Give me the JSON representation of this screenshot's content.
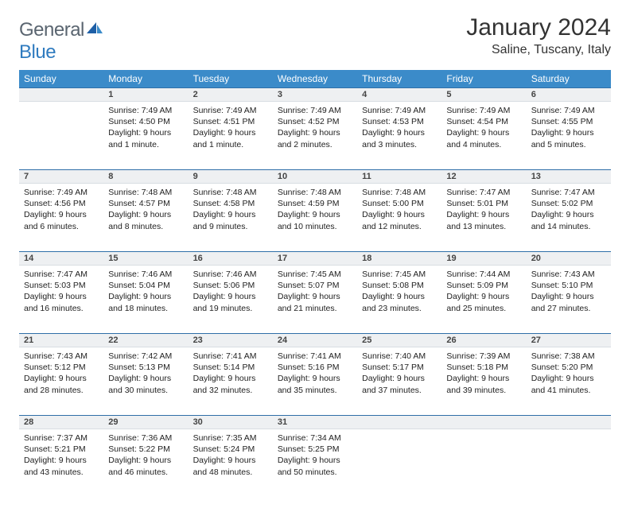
{
  "brand": {
    "name_gray": "General",
    "name_blue": "Blue"
  },
  "title": "January 2024",
  "location": "Saline, Tuscany, Italy",
  "colors": {
    "header_bg": "#3b8bc9",
    "header_text": "#ffffff",
    "daynum_bg": "#eef0f2",
    "daynum_border_top": "#2f6fa8",
    "logo_gray": "#5a6570",
    "logo_blue": "#2f7bbf",
    "text": "#222222",
    "page_bg": "#ffffff"
  },
  "layout": {
    "columns": 7,
    "rows": 5,
    "first_weekday_offset": 1
  },
  "weekdays": [
    "Sunday",
    "Monday",
    "Tuesday",
    "Wednesday",
    "Thursday",
    "Friday",
    "Saturday"
  ],
  "days": [
    {
      "n": 1,
      "sunrise": "7:49 AM",
      "sunset": "4:50 PM",
      "daylight": "9 hours and 1 minute."
    },
    {
      "n": 2,
      "sunrise": "7:49 AM",
      "sunset": "4:51 PM",
      "daylight": "9 hours and 1 minute."
    },
    {
      "n": 3,
      "sunrise": "7:49 AM",
      "sunset": "4:52 PM",
      "daylight": "9 hours and 2 minutes."
    },
    {
      "n": 4,
      "sunrise": "7:49 AM",
      "sunset": "4:53 PM",
      "daylight": "9 hours and 3 minutes."
    },
    {
      "n": 5,
      "sunrise": "7:49 AM",
      "sunset": "4:54 PM",
      "daylight": "9 hours and 4 minutes."
    },
    {
      "n": 6,
      "sunrise": "7:49 AM",
      "sunset": "4:55 PM",
      "daylight": "9 hours and 5 minutes."
    },
    {
      "n": 7,
      "sunrise": "7:49 AM",
      "sunset": "4:56 PM",
      "daylight": "9 hours and 6 minutes."
    },
    {
      "n": 8,
      "sunrise": "7:48 AM",
      "sunset": "4:57 PM",
      "daylight": "9 hours and 8 minutes."
    },
    {
      "n": 9,
      "sunrise": "7:48 AM",
      "sunset": "4:58 PM",
      "daylight": "9 hours and 9 minutes."
    },
    {
      "n": 10,
      "sunrise": "7:48 AM",
      "sunset": "4:59 PM",
      "daylight": "9 hours and 10 minutes."
    },
    {
      "n": 11,
      "sunrise": "7:48 AM",
      "sunset": "5:00 PM",
      "daylight": "9 hours and 12 minutes."
    },
    {
      "n": 12,
      "sunrise": "7:47 AM",
      "sunset": "5:01 PM",
      "daylight": "9 hours and 13 minutes."
    },
    {
      "n": 13,
      "sunrise": "7:47 AM",
      "sunset": "5:02 PM",
      "daylight": "9 hours and 14 minutes."
    },
    {
      "n": 14,
      "sunrise": "7:47 AM",
      "sunset": "5:03 PM",
      "daylight": "9 hours and 16 minutes."
    },
    {
      "n": 15,
      "sunrise": "7:46 AM",
      "sunset": "5:04 PM",
      "daylight": "9 hours and 18 minutes."
    },
    {
      "n": 16,
      "sunrise": "7:46 AM",
      "sunset": "5:06 PM",
      "daylight": "9 hours and 19 minutes."
    },
    {
      "n": 17,
      "sunrise": "7:45 AM",
      "sunset": "5:07 PM",
      "daylight": "9 hours and 21 minutes."
    },
    {
      "n": 18,
      "sunrise": "7:45 AM",
      "sunset": "5:08 PM",
      "daylight": "9 hours and 23 minutes."
    },
    {
      "n": 19,
      "sunrise": "7:44 AM",
      "sunset": "5:09 PM",
      "daylight": "9 hours and 25 minutes."
    },
    {
      "n": 20,
      "sunrise": "7:43 AM",
      "sunset": "5:10 PM",
      "daylight": "9 hours and 27 minutes."
    },
    {
      "n": 21,
      "sunrise": "7:43 AM",
      "sunset": "5:12 PM",
      "daylight": "9 hours and 28 minutes."
    },
    {
      "n": 22,
      "sunrise": "7:42 AM",
      "sunset": "5:13 PM",
      "daylight": "9 hours and 30 minutes."
    },
    {
      "n": 23,
      "sunrise": "7:41 AM",
      "sunset": "5:14 PM",
      "daylight": "9 hours and 32 minutes."
    },
    {
      "n": 24,
      "sunrise": "7:41 AM",
      "sunset": "5:16 PM",
      "daylight": "9 hours and 35 minutes."
    },
    {
      "n": 25,
      "sunrise": "7:40 AM",
      "sunset": "5:17 PM",
      "daylight": "9 hours and 37 minutes."
    },
    {
      "n": 26,
      "sunrise": "7:39 AM",
      "sunset": "5:18 PM",
      "daylight": "9 hours and 39 minutes."
    },
    {
      "n": 27,
      "sunrise": "7:38 AM",
      "sunset": "5:20 PM",
      "daylight": "9 hours and 41 minutes."
    },
    {
      "n": 28,
      "sunrise": "7:37 AM",
      "sunset": "5:21 PM",
      "daylight": "9 hours and 43 minutes."
    },
    {
      "n": 29,
      "sunrise": "7:36 AM",
      "sunset": "5:22 PM",
      "daylight": "9 hours and 46 minutes."
    },
    {
      "n": 30,
      "sunrise": "7:35 AM",
      "sunset": "5:24 PM",
      "daylight": "9 hours and 48 minutes."
    },
    {
      "n": 31,
      "sunrise": "7:34 AM",
      "sunset": "5:25 PM",
      "daylight": "9 hours and 50 minutes."
    }
  ],
  "labels": {
    "sunrise": "Sunrise:",
    "sunset": "Sunset:",
    "daylight": "Daylight:"
  }
}
